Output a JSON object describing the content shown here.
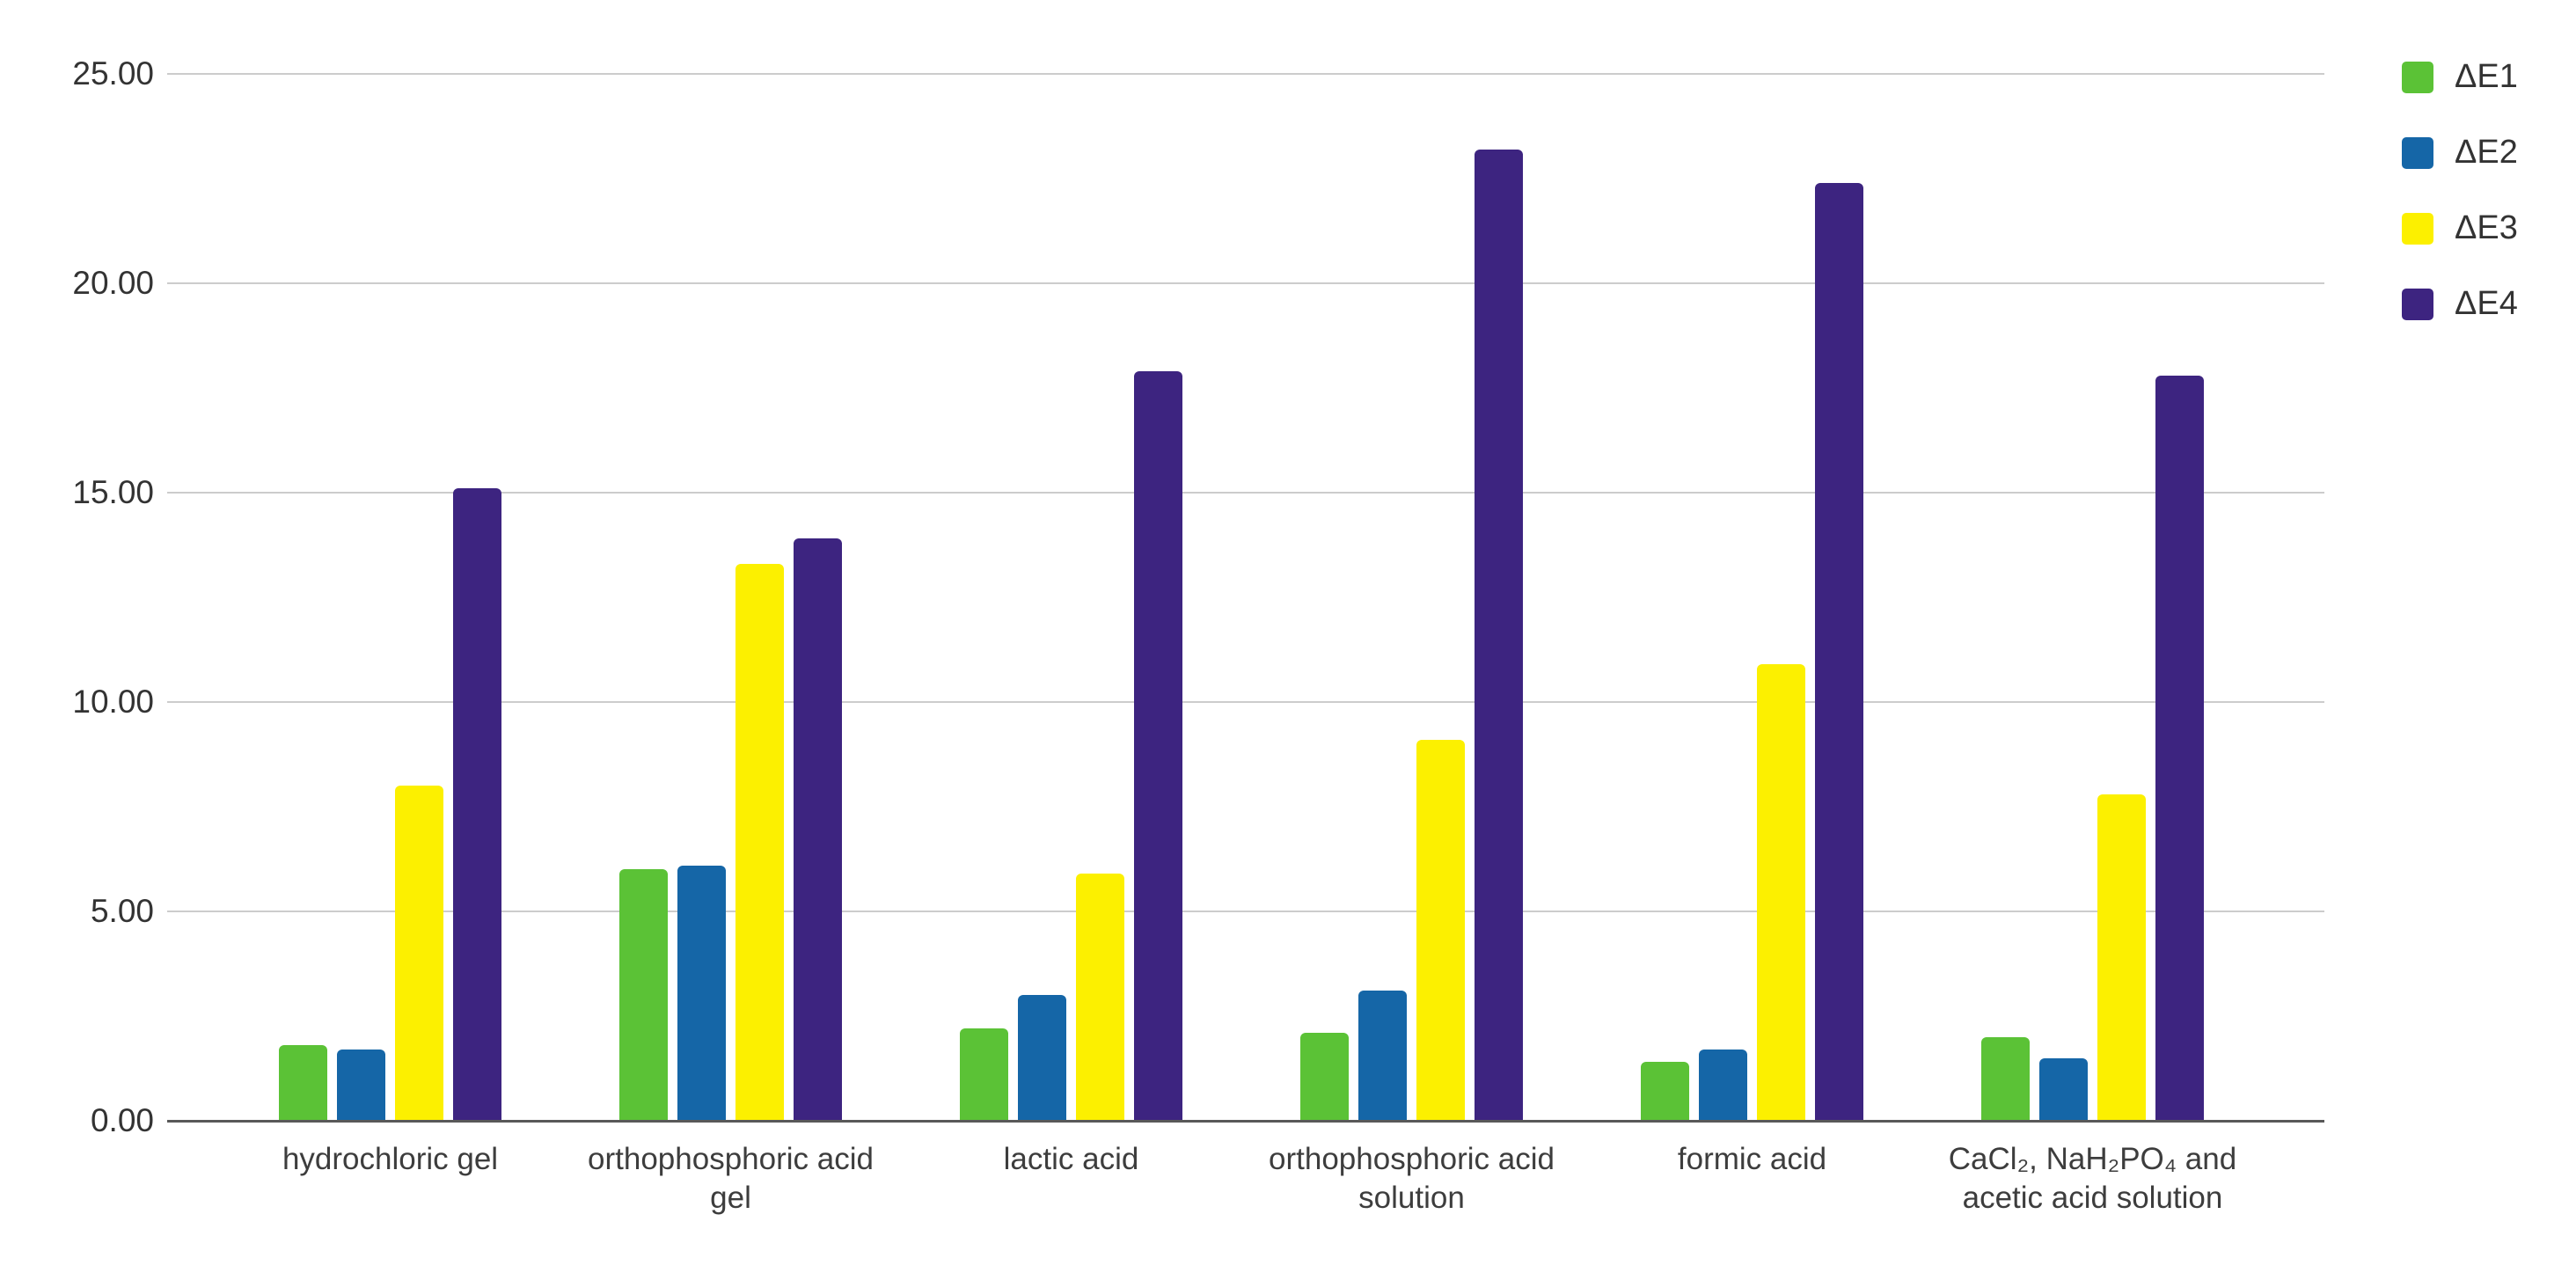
{
  "chart_data": {
    "type": "bar",
    "title": "",
    "xlabel": "",
    "ylabel": "",
    "categories": [
      "hydrochloric gel",
      "orthophosphoric acid gel",
      "lactic acid",
      "orthophosphoric acid solution",
      "formic acid",
      "CaCl₂, NaH₂PO₄ and acetic acid solution"
    ],
    "series": [
      {
        "name": "ΔE1",
        "color": "#5BC236",
        "values": [
          1.8,
          6.0,
          2.2,
          2.1,
          1.4,
          2.0
        ]
      },
      {
        "name": "ΔE2",
        "color": "#1566A7",
        "values": [
          1.7,
          6.1,
          3.0,
          3.1,
          1.7,
          1.5
        ]
      },
      {
        "name": "ΔE3",
        "color": "#FCF000",
        "values": [
          8.0,
          13.3,
          5.9,
          9.1,
          10.9,
          7.8
        ]
      },
      {
        "name": "ΔE4",
        "color": "#3D2480",
        "values": [
          15.1,
          13.9,
          17.9,
          23.2,
          22.4,
          17.8
        ]
      }
    ],
    "ylim": [
      0,
      25
    ],
    "y_ticks": [
      {
        "value": 0,
        "label": "0.00"
      },
      {
        "value": 5,
        "label": "5.00"
      },
      {
        "value": 10,
        "label": "10.00"
      },
      {
        "value": 15,
        "label": "15.00"
      },
      {
        "value": 20,
        "label": "20.00"
      },
      {
        "value": 25,
        "label": "25.00"
      }
    ],
    "grid": "horizontal",
    "legend_position": "top-right",
    "colors": {
      "background": "#FFFFFF",
      "gridline": "#CCCCCC",
      "axis_line": "#595959",
      "tick_text": "#333333",
      "category_text": "#3D3D3D",
      "legend_text": "#333333"
    }
  }
}
